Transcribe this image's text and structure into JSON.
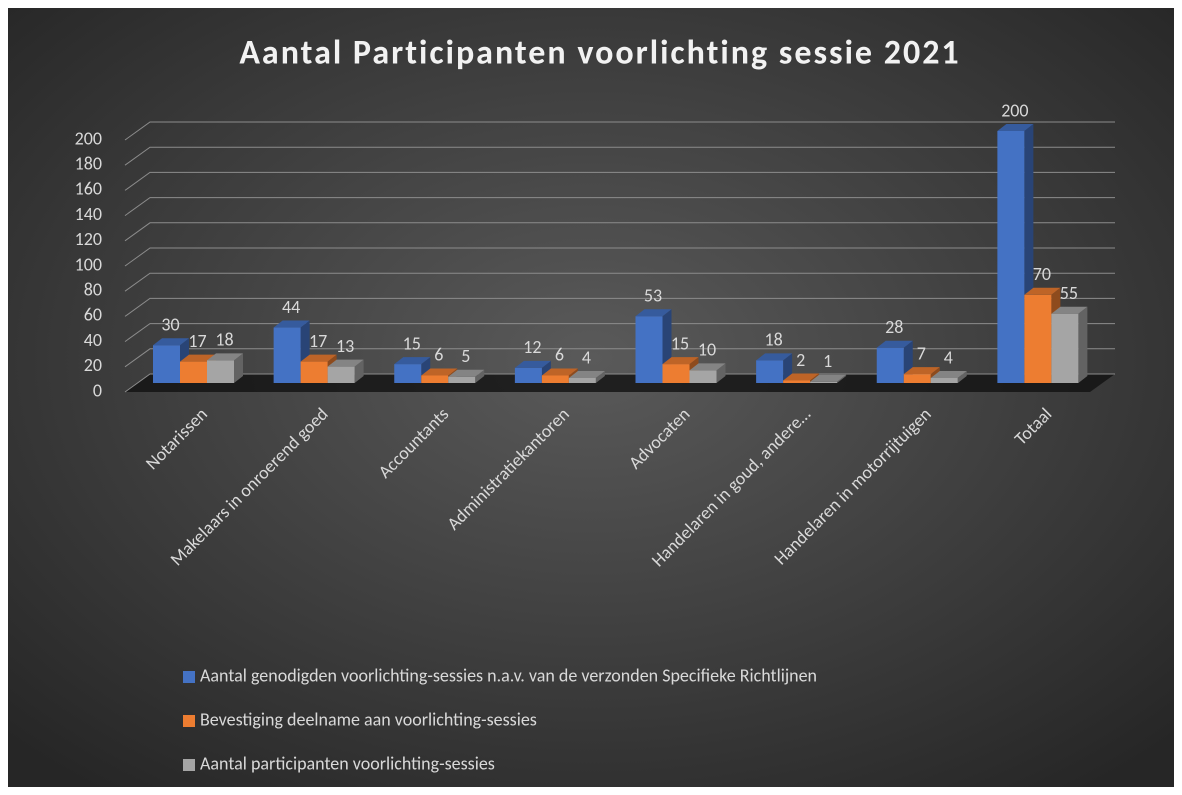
{
  "chart_data": {
    "type": "bar3d",
    "title": "Aantal Participanten voorlichting sessie 2021",
    "categories": [
      "Notarissen",
      "Makelaars in onroerend goed",
      "Accountants",
      "Administratiekantoren",
      "Advocaten",
      "Handelaren in goud, andere…",
      "Handelaren in motorrijtuigen",
      "Totaal"
    ],
    "series": [
      {
        "name": "Aantal genodigden voorlichting-sessies n.a.v. van de verzonden Specifieke Richtlijnen",
        "color": "#4472c4",
        "values": [
          30,
          44,
          15,
          12,
          53,
          18,
          28,
          200
        ]
      },
      {
        "name": "Bevestiging deelname aan voorlichting-sessies",
        "color": "#ed7d31",
        "values": [
          17,
          17,
          6,
          6,
          15,
          2,
          7,
          70
        ]
      },
      {
        "name": "Aantal participanten voorlichting-sessies",
        "color": "#a5a5a5",
        "values": [
          18,
          13,
          5,
          4,
          10,
          1,
          4,
          55
        ]
      }
    ],
    "ylim": [
      0,
      200
    ],
    "yticks": [
      0,
      20,
      40,
      60,
      80,
      100,
      120,
      140,
      160,
      180,
      200
    ],
    "grid": true,
    "legend": "bottom"
  }
}
